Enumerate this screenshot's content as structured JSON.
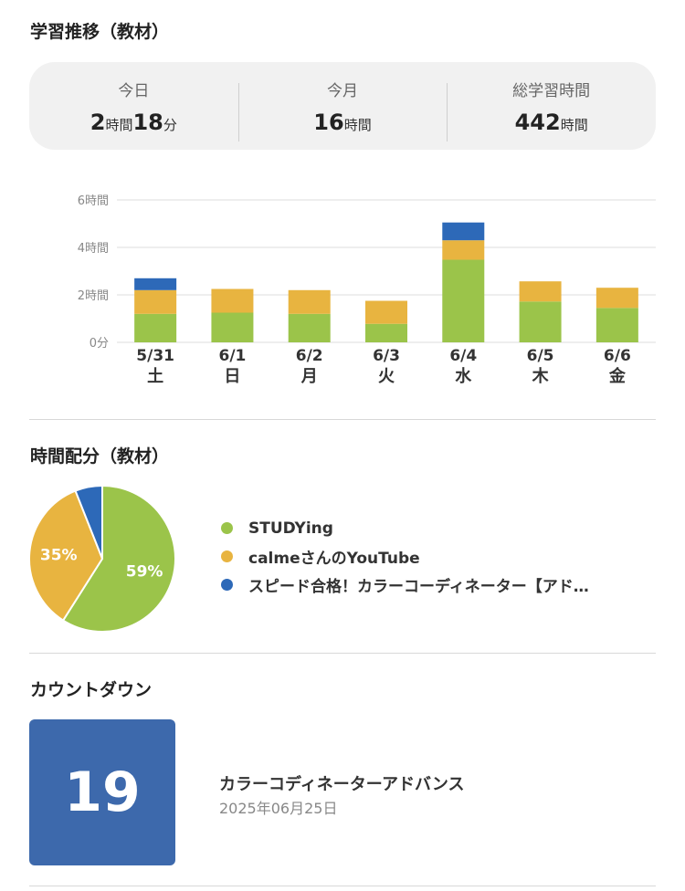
{
  "progress_section": {
    "title": "学習推移（教材）"
  },
  "summary": [
    {
      "label": "今日",
      "parts": [
        {
          "num": "2",
          "unit": "時間"
        },
        {
          "num": "18",
          "unit": "分"
        }
      ]
    },
    {
      "label": "今月",
      "parts": [
        {
          "num": "16",
          "unit": "時間"
        }
      ]
    },
    {
      "label": "総学習時間",
      "parts": [
        {
          "num": "442",
          "unit": "時間"
        }
      ]
    }
  ],
  "chart_data": {
    "type": "bar",
    "stacked": true,
    "categories": [
      "5/31",
      "6/1",
      "6/2",
      "6/3",
      "6/4",
      "6/5",
      "6/6"
    ],
    "weekdays": [
      "土",
      "日",
      "月",
      "火",
      "水",
      "木",
      "金"
    ],
    "yticks": [
      "0分",
      "2時間",
      "4時間",
      "6時間"
    ],
    "ylim": [
      0,
      6
    ],
    "grid": true,
    "series": [
      {
        "name": "STUDYing",
        "color": "#9bc44a",
        "values": [
          1.2,
          1.25,
          1.2,
          0.78,
          3.48,
          1.72,
          1.45
        ]
      },
      {
        "name": "calmeさんのYouTube",
        "color": "#e8b440",
        "values": [
          1.0,
          1.0,
          1.0,
          0.97,
          0.82,
          0.85,
          0.85
        ]
      },
      {
        "name": "スピード合格！カラーコーディネーター【アド…",
        "color": "#2d69b8",
        "values": [
          0.5,
          0,
          0,
          0,
          0.75,
          0,
          0
        ]
      }
    ]
  },
  "distribution_section": {
    "title": "時間配分（教材）"
  },
  "pie_data": {
    "type": "pie",
    "slices": [
      {
        "name": "STUDYing",
        "value": 59,
        "label": "59%",
        "color": "#9bc44a"
      },
      {
        "name": "calmeさんのYouTube",
        "value": 35,
        "label": "35%",
        "color": "#e8b440"
      },
      {
        "name": "スピード合格！カラーコーディネーター【アド…",
        "value": 6,
        "label": "",
        "color": "#2d69b8"
      }
    ]
  },
  "legend": [
    {
      "label": "STUDYing",
      "color": "#9bc44a"
    },
    {
      "label": "calmeさんのYouTube",
      "color": "#e8b440"
    },
    {
      "label": "スピード合格！カラーコーディネーター【アド…",
      "color": "#2d69b8"
    }
  ],
  "countdown_section": {
    "title": "カウントダウン",
    "days": "19",
    "name": "カラーコディネーターアドバンス",
    "date": "2025年06月25日",
    "box_color": "#3d69ac"
  }
}
